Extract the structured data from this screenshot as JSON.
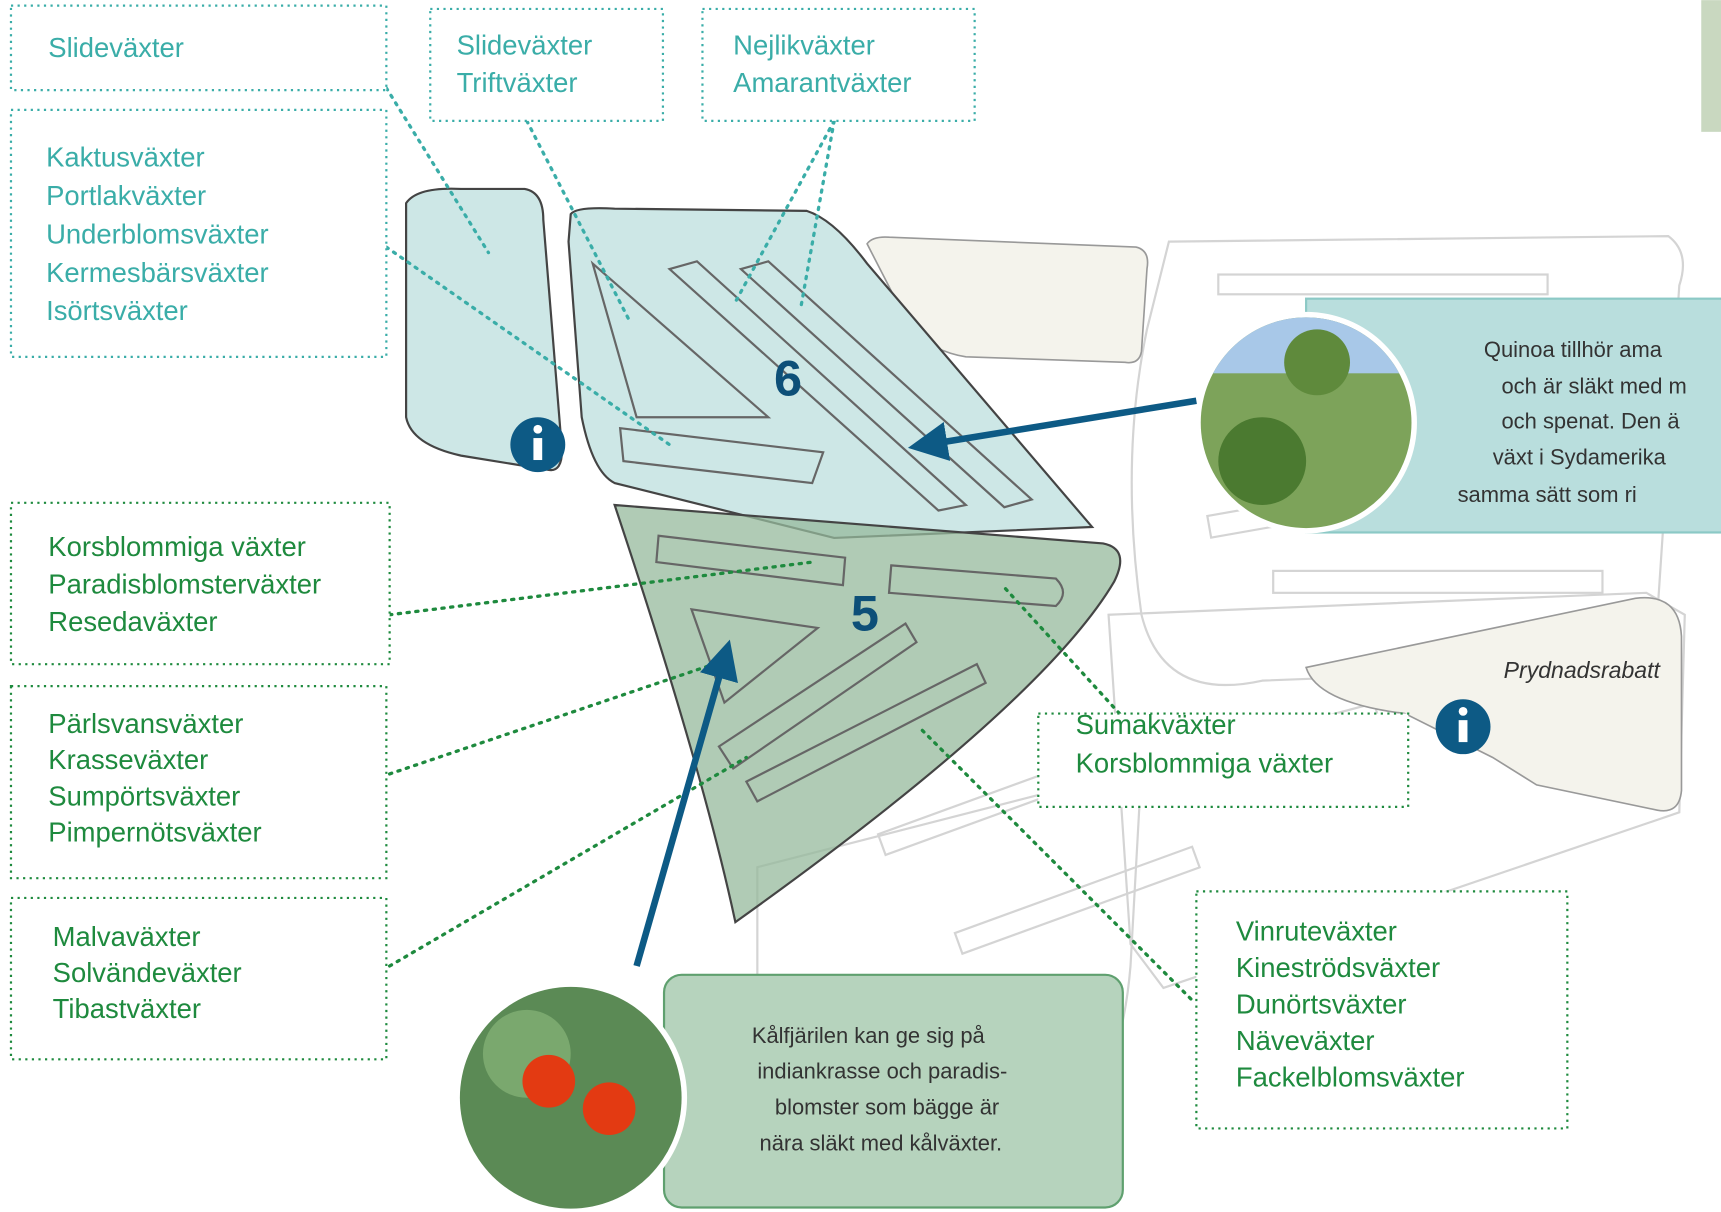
{
  "label_boxes": [
    {
      "lines": [
        "Slideväxter"
      ]
    },
    {
      "lines": [
        "Kaktusväxter",
        "Portlakväxter",
        "Underblomsväxter",
        "Kermesbärsväxter",
        "Isörtsväxter"
      ]
    },
    {
      "lines": [
        "Slideväxter",
        "Triftväxter"
      ]
    },
    {
      "lines": [
        "Nejlikväxter",
        "Amarantväxter"
      ]
    },
    {
      "lines": [
        "Korsblommiga växter",
        "Paradisblomsterväxter",
        "Resedaväxter"
      ]
    },
    {
      "lines": [
        "Pärlsvansväxter",
        "Krasseväxter",
        "Sumpörtsväxter",
        "Pimpernötsväxter"
      ]
    },
    {
      "lines": [
        "Malvaväxter",
        "Solvändeväxter",
        "Tibastväxter"
      ]
    },
    {
      "lines": [
        "Sumakväxter",
        "Korsblommiga växter"
      ]
    },
    {
      "lines": [
        "Vinruteväxter",
        "Kineströdsväxter",
        "Dunörtsväxter",
        "Näveväxter",
        "Fackelblomsväxter"
      ]
    }
  ],
  "beds": [
    {
      "number": "6"
    },
    {
      "number": "5"
    }
  ],
  "callouts": [
    {
      "lines": [
        "Quinoa tillhör ama",
        "och är släkt med m",
        "och spenat. Den ä",
        "växt i Sydamerika",
        "samma sätt som ri"
      ]
    },
    {
      "lines": [
        "Kålfjärilen kan ge sig på",
        "indiankrasse och paradis-",
        "blomster som bägge är",
        "nära släkt med kålväxter."
      ]
    }
  ],
  "ornamental_bed": "Prydnadsrabatt"
}
